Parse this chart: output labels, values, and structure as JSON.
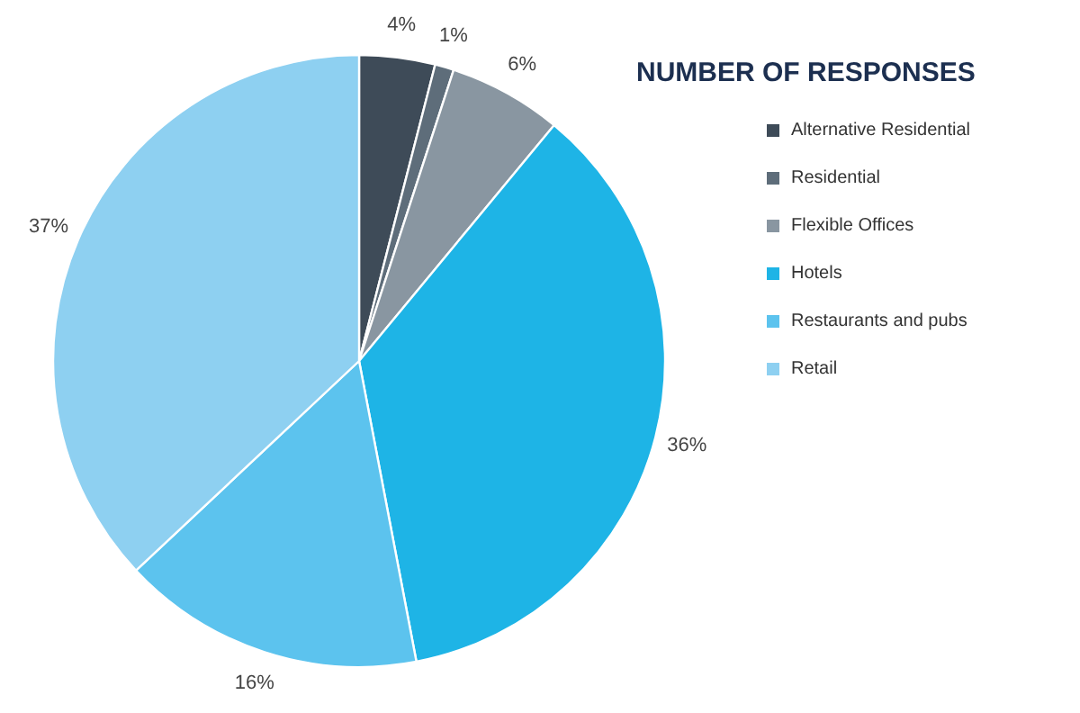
{
  "chart_data": {
    "type": "pie",
    "legend_title": "NUMBER OF RESPONSES",
    "legend": "right",
    "categories": [
      "Alternative Residential",
      "Residential",
      "Flexible Offices",
      "Hotels",
      "Restaurants and pubs",
      "Retail"
    ],
    "values": [
      4,
      1,
      6,
      36,
      16,
      37
    ],
    "value_labels": [
      "4%",
      "1%",
      "6%",
      "36%",
      "16%",
      "37%"
    ],
    "colors": [
      "#3e4b58",
      "#5e6d7a",
      "#8996a1",
      "#1eb4e6",
      "#5cc3ee",
      "#8ed0f1"
    ]
  }
}
